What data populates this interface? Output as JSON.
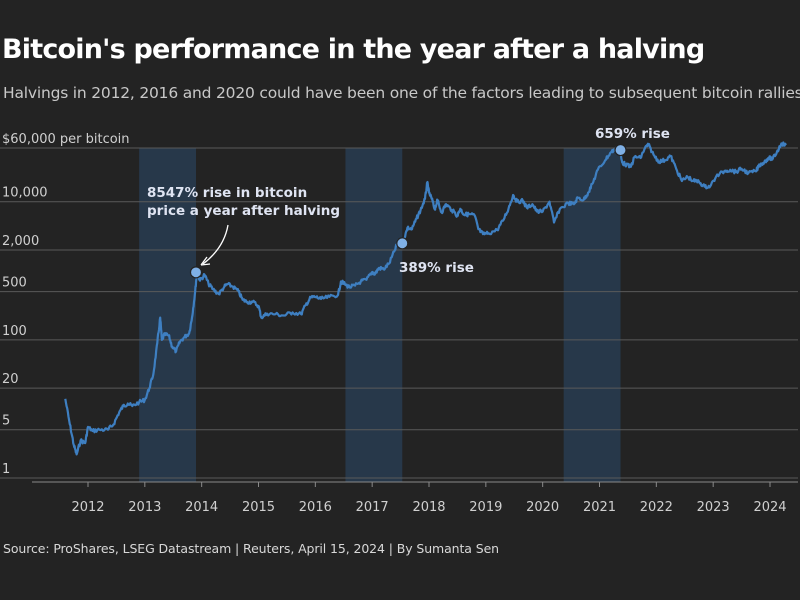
{
  "chart_data": {
    "type": "line",
    "title": "Bitcoin's performance in the year after a halving",
    "subtitle": "Halvings in 2012, 2016 and 2020 could have been one of the factors leading to subsequent bitcoin rallies.",
    "source": "Source: ProShares, LSEG Datastream | Reuters, April 15, 2024 | By Sumanta Sen",
    "y_scale": "log",
    "y_ticks": [
      {
        "value": 1,
        "label": "1"
      },
      {
        "value": 5,
        "label": "5"
      },
      {
        "value": 20,
        "label": "20"
      },
      {
        "value": 100,
        "label": "100"
      },
      {
        "value": 500,
        "label": "500"
      },
      {
        "value": 2000,
        "label": "2,000"
      },
      {
        "value": 10000,
        "label": "10,000"
      },
      {
        "value": 60000,
        "label": "$60,000 per bitcoin"
      }
    ],
    "x_ticks": [
      2012,
      2013,
      2014,
      2015,
      2016,
      2017,
      2018,
      2019,
      2020,
      2021,
      2022,
      2023,
      2024
    ],
    "xlim": [
      2011.25,
      2024.5
    ],
    "series": [
      {
        "name": "Bitcoin price (USD)",
        "color": "#3e7fc1",
        "points": [
          [
            2011.6,
            14
          ],
          [
            2011.68,
            6
          ],
          [
            2011.75,
            3
          ],
          [
            2011.8,
            2.2
          ],
          [
            2011.87,
            3.5
          ],
          [
            2011.95,
            3.2
          ],
          [
            2012.0,
            5.5
          ],
          [
            2012.08,
            4.8
          ],
          [
            2012.2,
            5
          ],
          [
            2012.35,
            5
          ],
          [
            2012.45,
            6
          ],
          [
            2012.55,
            9
          ],
          [
            2012.62,
            11
          ],
          [
            2012.7,
            12
          ],
          [
            2012.78,
            11
          ],
          [
            2012.9,
            12.5
          ],
          [
            2013.0,
            13.5
          ],
          [
            2013.08,
            20
          ],
          [
            2013.15,
            32
          ],
          [
            2013.22,
            90
          ],
          [
            2013.27,
            210
          ],
          [
            2013.3,
            100
          ],
          [
            2013.35,
            120
          ],
          [
            2013.42,
            115
          ],
          [
            2013.48,
            80
          ],
          [
            2013.55,
            68
          ],
          [
            2013.62,
            95
          ],
          [
            2013.7,
            110
          ],
          [
            2013.78,
            125
          ],
          [
            2013.83,
            210
          ],
          [
            2013.88,
            450
          ],
          [
            2013.92,
            1000
          ],
          [
            2013.97,
            720
          ],
          [
            2014.05,
            880
          ],
          [
            2014.12,
            650
          ],
          [
            2014.2,
            540
          ],
          [
            2014.3,
            460
          ],
          [
            2014.4,
            590
          ],
          [
            2014.45,
            640
          ],
          [
            2014.55,
            590
          ],
          [
            2014.65,
            500
          ],
          [
            2014.72,
            380
          ],
          [
            2014.8,
            355
          ],
          [
            2014.9,
            355
          ],
          [
            2015.0,
            310
          ],
          [
            2015.05,
            210
          ],
          [
            2015.15,
            240
          ],
          [
            2015.3,
            235
          ],
          [
            2015.45,
            225
          ],
          [
            2015.6,
            250
          ],
          [
            2015.75,
            235
          ],
          [
            2015.83,
            320
          ],
          [
            2015.92,
            410
          ],
          [
            2016.0,
            420
          ],
          [
            2016.1,
            390
          ],
          [
            2016.25,
            420
          ],
          [
            2016.4,
            450
          ],
          [
            2016.45,
            700
          ],
          [
            2016.52,
            640
          ],
          [
            2016.6,
            580
          ],
          [
            2016.7,
            610
          ],
          [
            2016.8,
            700
          ],
          [
            2016.9,
            740
          ],
          [
            2017.0,
            960
          ],
          [
            2017.05,
            900
          ],
          [
            2017.12,
            1100
          ],
          [
            2017.2,
            1050
          ],
          [
            2017.3,
            1280
          ],
          [
            2017.4,
            2000
          ],
          [
            2017.45,
            2600
          ],
          [
            2017.5,
            2450
          ],
          [
            2017.55,
            2700
          ],
          [
            2017.62,
            4200
          ],
          [
            2017.7,
            4000
          ],
          [
            2017.78,
            5700
          ],
          [
            2017.85,
            7500
          ],
          [
            2017.93,
            11000
          ],
          [
            2017.97,
            19000
          ],
          [
            2018.0,
            13500
          ],
          [
            2018.05,
            11000
          ],
          [
            2018.1,
            7800
          ],
          [
            2018.15,
            10500
          ],
          [
            2018.22,
            7000
          ],
          [
            2018.3,
            9200
          ],
          [
            2018.4,
            7600
          ],
          [
            2018.5,
            6300
          ],
          [
            2018.55,
            7900
          ],
          [
            2018.62,
            6500
          ],
          [
            2018.7,
            6600
          ],
          [
            2018.8,
            6400
          ],
          [
            2018.87,
            4000
          ],
          [
            2018.95,
            3400
          ],
          [
            2019.05,
            3500
          ],
          [
            2019.2,
            3900
          ],
          [
            2019.3,
            5300
          ],
          [
            2019.4,
            8000
          ],
          [
            2019.48,
            12500
          ],
          [
            2019.55,
            10000
          ],
          [
            2019.65,
            10400
          ],
          [
            2019.72,
            8200
          ],
          [
            2019.82,
            9200
          ],
          [
            2019.9,
            7200
          ],
          [
            2020.0,
            7200
          ],
          [
            2020.12,
            10000
          ],
          [
            2020.2,
            5000
          ],
          [
            2020.3,
            7800
          ],
          [
            2020.45,
            9600
          ],
          [
            2020.55,
            9200
          ],
          [
            2020.62,
            11500
          ],
          [
            2020.72,
            10600
          ],
          [
            2020.8,
            13500
          ],
          [
            2020.88,
            18500
          ],
          [
            2020.97,
            29000
          ],
          [
            2021.1,
            40000
          ],
          [
            2021.2,
            52000
          ],
          [
            2021.28,
            58000
          ],
          [
            2021.35,
            56000
          ],
          [
            2021.4,
            37000
          ],
          [
            2021.45,
            35000
          ],
          [
            2021.55,
            32000
          ],
          [
            2021.62,
            45000
          ],
          [
            2021.72,
            43000
          ],
          [
            2021.8,
            60000
          ],
          [
            2021.86,
            67000
          ],
          [
            2021.95,
            48000
          ],
          [
            2022.05,
            38000
          ],
          [
            2022.15,
            40000
          ],
          [
            2022.25,
            46000
          ],
          [
            2022.35,
            30000
          ],
          [
            2022.45,
            20000
          ],
          [
            2022.55,
            23000
          ],
          [
            2022.65,
            20000
          ],
          [
            2022.75,
            19500
          ],
          [
            2022.85,
            16500
          ],
          [
            2022.95,
            16800
          ],
          [
            2023.05,
            23000
          ],
          [
            2023.2,
            28000
          ],
          [
            2023.3,
            29000
          ],
          [
            2023.4,
            27000
          ],
          [
            2023.5,
            30000
          ],
          [
            2023.62,
            26000
          ],
          [
            2023.75,
            27500
          ],
          [
            2023.82,
            34500
          ],
          [
            2023.9,
            37500
          ],
          [
            2023.97,
            43000
          ],
          [
            2024.05,
            42000
          ],
          [
            2024.12,
            52000
          ],
          [
            2024.2,
            70000
          ],
          [
            2024.28,
            66000
          ]
        ]
      }
    ],
    "halving_periods": [
      {
        "start": 2012.9,
        "end": 2013.9
      },
      {
        "start": 2016.53,
        "end": 2017.53
      },
      {
        "start": 2020.37,
        "end": 2021.37
      }
    ],
    "annotations": [
      {
        "lines": [
          "8547% rise in bitcoin",
          "price a year after halving"
        ],
        "point": [
          2013.9,
          950
        ]
      },
      {
        "lines": [
          "389% rise"
        ],
        "point": [
          2017.53,
          2500
        ]
      },
      {
        "lines": [
          "659% rise"
        ],
        "point": [
          2021.37,
          56000
        ]
      }
    ]
  }
}
